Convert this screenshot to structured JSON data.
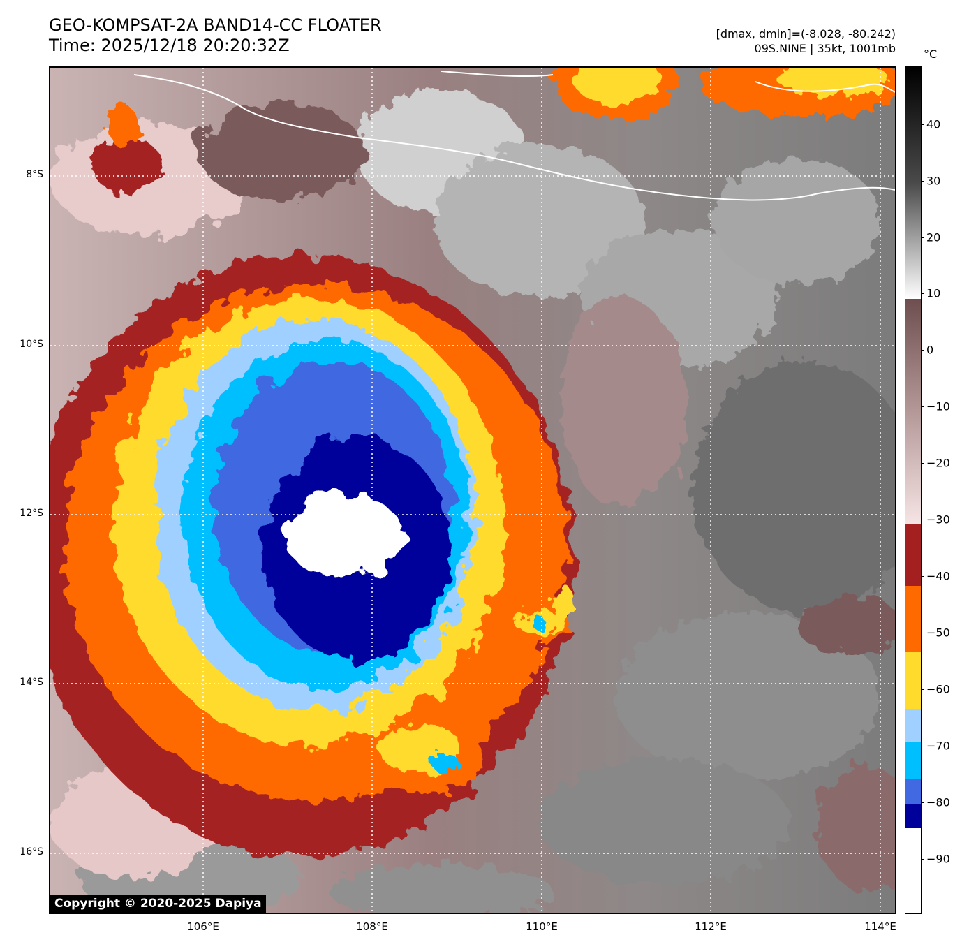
{
  "header": {
    "title_line1": "GEO-KOMPSAT-2A BAND14-CC FLOATER",
    "title_line2": "Time: 2025/12/18 20:20:32Z",
    "info_line1": "[dmax, dmin]=(-8.028, -80.242)",
    "info_line2": "09S.NINE | 35kt, 1001mb"
  },
  "map": {
    "lat_labels": [
      "8°S",
      "10°S",
      "12°S",
      "14°S",
      "16°S"
    ],
    "lon_labels": [
      "106°E",
      "108°E",
      "110°E",
      "112°E",
      "114°E"
    ],
    "copyright": "Copyright © 2020-2025 Dapiya"
  },
  "colorbar": {
    "unit": "°C",
    "ticks": [
      "40",
      "30",
      "20",
      "10",
      "0",
      "−10",
      "−20",
      "−30",
      "−40",
      "−50",
      "−60",
      "−70",
      "−80",
      "−90"
    ],
    "colors": {
      "white": "#ffffff",
      "dark_blue": "#00009a",
      "royal_blue": "#4169e1",
      "cyan": "#00bfff",
      "light_blue": "#a0d0ff",
      "yellow": "#ffdb2e",
      "orange": "#ff6a00",
      "dark_red": "#a42020",
      "pink": "#f2d8d8",
      "mauve": "#7a5a5a",
      "gray": "#8a8a8a"
    }
  }
}
